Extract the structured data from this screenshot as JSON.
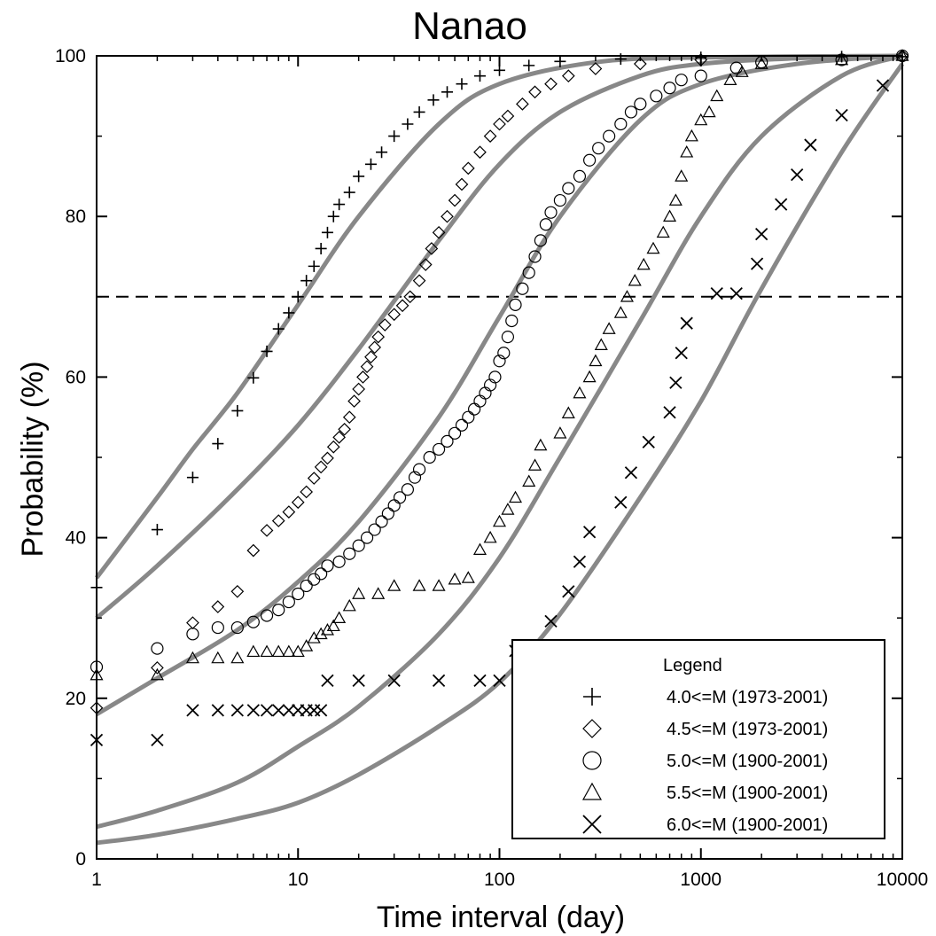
{
  "chart_data": {
    "type": "scatter",
    "title": "Nanao",
    "xlabel": "Time interval (day)",
    "ylabel": "Probability (%)",
    "xscale": "log",
    "xlim": [
      1,
      10000
    ],
    "ylim": [
      0,
      100
    ],
    "x_ticks": [
      "1",
      "10",
      "100",
      "1000",
      "10000"
    ],
    "y_ticks": [
      "0",
      "20",
      "40",
      "60",
      "80",
      "100"
    ],
    "reference_line": {
      "y": 70,
      "style": "dashed"
    },
    "legend": {
      "title": "Legend",
      "placement": "bottom-right"
    },
    "fit_color": "#888888",
    "marker_color": "#000000",
    "series": [
      {
        "name": "4.0<=M (1973-2001)",
        "marker": "plus",
        "points": [
          [
            1,
            33.8
          ],
          [
            2,
            41
          ],
          [
            3,
            47.5
          ],
          [
            4,
            51.7
          ],
          [
            5,
            55.8
          ],
          [
            6,
            59.9
          ],
          [
            7,
            63.2
          ],
          [
            8,
            66
          ],
          [
            9,
            68
          ],
          [
            10,
            70
          ],
          [
            11,
            72
          ],
          [
            12,
            73.8
          ],
          [
            13,
            76
          ],
          [
            14,
            78
          ],
          [
            15,
            80
          ],
          [
            16,
            81.5
          ],
          [
            18,
            83
          ],
          [
            20,
            85
          ],
          [
            23,
            86.5
          ],
          [
            26,
            88
          ],
          [
            30,
            90
          ],
          [
            35,
            91.5
          ],
          [
            40,
            93
          ],
          [
            47,
            94.5
          ],
          [
            55,
            95.5
          ],
          [
            65,
            96.5
          ],
          [
            80,
            97.5
          ],
          [
            100,
            98.2
          ],
          [
            140,
            98.8
          ],
          [
            200,
            99.3
          ],
          [
            400,
            99.6
          ],
          [
            1000,
            99.8
          ],
          [
            5000,
            99.9
          ],
          [
            10000,
            99.9
          ]
        ],
        "fit": [
          [
            1,
            35
          ],
          [
            2,
            45
          ],
          [
            3,
            51
          ],
          [
            5,
            58
          ],
          [
            10,
            69
          ],
          [
            20,
            80
          ],
          [
            50,
            91.5
          ],
          [
            100,
            96.5
          ],
          [
            300,
            99.2
          ],
          [
            1000,
            99.8
          ],
          [
            10000,
            100
          ]
        ]
      },
      {
        "name": "4.5<=M (1973-2001)",
        "marker": "diamond",
        "points": [
          [
            1,
            18.8
          ],
          [
            2,
            23.8
          ],
          [
            3,
            29.4
          ],
          [
            4,
            31.4
          ],
          [
            5,
            33.3
          ],
          [
            6,
            38.4
          ],
          [
            7,
            40.9
          ],
          [
            8,
            42.1
          ],
          [
            9,
            43.2
          ],
          [
            10,
            44.4
          ],
          [
            11,
            45.7
          ],
          [
            12,
            47.4
          ],
          [
            13,
            48.8
          ],
          [
            14,
            49.9
          ],
          [
            15,
            51.3
          ],
          [
            16,
            52.5
          ],
          [
            17,
            53.5
          ],
          [
            18,
            55
          ],
          [
            19,
            57
          ],
          [
            20,
            58.5
          ],
          [
            21,
            60
          ],
          [
            22,
            61.3
          ],
          [
            23,
            62.5
          ],
          [
            24,
            63.7
          ],
          [
            25,
            65
          ],
          [
            27,
            66.5
          ],
          [
            30,
            67.8
          ],
          [
            33,
            68.9
          ],
          [
            36,
            70
          ],
          [
            40,
            72
          ],
          [
            43,
            74
          ],
          [
            46,
            76
          ],
          [
            50,
            78
          ],
          [
            55,
            80
          ],
          [
            60,
            82
          ],
          [
            65,
            84
          ],
          [
            70,
            86
          ],
          [
            80,
            88
          ],
          [
            90,
            90
          ],
          [
            100,
            91.5
          ],
          [
            110,
            92.5
          ],
          [
            130,
            94
          ],
          [
            150,
            95.5
          ],
          [
            180,
            96.5
          ],
          [
            220,
            97.5
          ],
          [
            300,
            98.4
          ],
          [
            500,
            99
          ],
          [
            1000,
            99.5
          ],
          [
            10000,
            100
          ]
        ],
        "fit": [
          [
            1,
            30
          ],
          [
            2,
            36.5
          ],
          [
            5,
            46
          ],
          [
            10,
            54
          ],
          [
            20,
            63.5
          ],
          [
            50,
            77
          ],
          [
            100,
            86.5
          ],
          [
            200,
            93
          ],
          [
            500,
            97.5
          ],
          [
            1000,
            99
          ],
          [
            3000,
            99.7
          ],
          [
            10000,
            100
          ]
        ]
      },
      {
        "name": "5.0<=M (1900-2001)",
        "marker": "circle",
        "points": [
          [
            1,
            23.9
          ],
          [
            2,
            26.2
          ],
          [
            3,
            28
          ],
          [
            4,
            28.8
          ],
          [
            5,
            28.8
          ],
          [
            6,
            29.5
          ],
          [
            7,
            30.3
          ],
          [
            8,
            31
          ],
          [
            9,
            32
          ],
          [
            10,
            33
          ],
          [
            11,
            34
          ],
          [
            12,
            34.8
          ],
          [
            13,
            35.5
          ],
          [
            14,
            36.5
          ],
          [
            16,
            37
          ],
          [
            18,
            38
          ],
          [
            20,
            39
          ],
          [
            22,
            40
          ],
          [
            24,
            41
          ],
          [
            26,
            42
          ],
          [
            28,
            43
          ],
          [
            30,
            44
          ],
          [
            32,
            45
          ],
          [
            35,
            46
          ],
          [
            38,
            47.5
          ],
          [
            40,
            48.5
          ],
          [
            45,
            50
          ],
          [
            50,
            51
          ],
          [
            55,
            52
          ],
          [
            60,
            53
          ],
          [
            65,
            54
          ],
          [
            70,
            55
          ],
          [
            75,
            56
          ],
          [
            80,
            57
          ],
          [
            85,
            58
          ],
          [
            90,
            59
          ],
          [
            95,
            60
          ],
          [
            100,
            62
          ],
          [
            105,
            63
          ],
          [
            110,
            65
          ],
          [
            115,
            67
          ],
          [
            120,
            69
          ],
          [
            130,
            71
          ],
          [
            140,
            73
          ],
          [
            150,
            75
          ],
          [
            160,
            77
          ],
          [
            170,
            79
          ],
          [
            180,
            80.5
          ],
          [
            200,
            82
          ],
          [
            220,
            83.5
          ],
          [
            250,
            85
          ],
          [
            280,
            87
          ],
          [
            310,
            88.5
          ],
          [
            350,
            90
          ],
          [
            400,
            91.5
          ],
          [
            450,
            93
          ],
          [
            500,
            94
          ],
          [
            600,
            95
          ],
          [
            700,
            96
          ],
          [
            800,
            97
          ],
          [
            1000,
            97.5
          ],
          [
            1500,
            98.5
          ],
          [
            2000,
            99.2
          ],
          [
            5000,
            99.5
          ],
          [
            10000,
            100
          ]
        ],
        "fit": [
          [
            1,
            18
          ],
          [
            2,
            22.5
          ],
          [
            5,
            28.5
          ],
          [
            10,
            34.5
          ],
          [
            20,
            42
          ],
          [
            50,
            55
          ],
          [
            100,
            67.5
          ],
          [
            200,
            80
          ],
          [
            500,
            92
          ],
          [
            1000,
            96.5
          ],
          [
            3000,
            99
          ],
          [
            10000,
            100
          ]
        ]
      },
      {
        "name": "5.5<=M (1900-2001)",
        "marker": "triangle",
        "points": [
          [
            1,
            22.9
          ],
          [
            2,
            22.9
          ],
          [
            3,
            25
          ],
          [
            4,
            25
          ],
          [
            5,
            25
          ],
          [
            6,
            25.8
          ],
          [
            7,
            25.8
          ],
          [
            8,
            25.8
          ],
          [
            9,
            25.8
          ],
          [
            10,
            25.8
          ],
          [
            11,
            26.5
          ],
          [
            12,
            27.5
          ],
          [
            13,
            28
          ],
          [
            14,
            28.5
          ],
          [
            15,
            29
          ],
          [
            16,
            30
          ],
          [
            18,
            31.5
          ],
          [
            20,
            33
          ],
          [
            25,
            33
          ],
          [
            30,
            34
          ],
          [
            40,
            34
          ],
          [
            50,
            34
          ],
          [
            60,
            34.8
          ],
          [
            70,
            35
          ],
          [
            80,
            38.5
          ],
          [
            90,
            40
          ],
          [
            100,
            42
          ],
          [
            110,
            43.5
          ],
          [
            120,
            45
          ],
          [
            140,
            47
          ],
          [
            150,
            49
          ],
          [
            160,
            51.5
          ],
          [
            200,
            53
          ],
          [
            220,
            55.5
          ],
          [
            250,
            58
          ],
          [
            280,
            60
          ],
          [
            300,
            62
          ],
          [
            320,
            64
          ],
          [
            350,
            66
          ],
          [
            400,
            68
          ],
          [
            430,
            70
          ],
          [
            470,
            72
          ],
          [
            520,
            74
          ],
          [
            580,
            76
          ],
          [
            650,
            78
          ],
          [
            700,
            80
          ],
          [
            750,
            82
          ],
          [
            800,
            85
          ],
          [
            850,
            88
          ],
          [
            900,
            90
          ],
          [
            1000,
            92
          ],
          [
            1100,
            93
          ],
          [
            1200,
            95
          ],
          [
            1400,
            97
          ],
          [
            1600,
            98
          ],
          [
            2000,
            99
          ],
          [
            5000,
            99.5
          ],
          [
            10000,
            100
          ]
        ],
        "fit": [
          [
            1,
            4
          ],
          [
            2,
            6
          ],
          [
            5,
            9.5
          ],
          [
            10,
            14
          ],
          [
            20,
            19
          ],
          [
            50,
            28
          ],
          [
            100,
            37.5
          ],
          [
            200,
            50
          ],
          [
            500,
            67
          ],
          [
            1000,
            80
          ],
          [
            2000,
            90
          ],
          [
            5000,
            97.5
          ],
          [
            10000,
            100
          ]
        ]
      },
      {
        "name": "6.0<=M (1900-2001)",
        "marker": "x",
        "points": [
          [
            1,
            14.8
          ],
          [
            2,
            14.8
          ],
          [
            3,
            18.5
          ],
          [
            4,
            18.5
          ],
          [
            5,
            18.5
          ],
          [
            6,
            18.5
          ],
          [
            7,
            18.5
          ],
          [
            8,
            18.5
          ],
          [
            9,
            18.5
          ],
          [
            10,
            18.5
          ],
          [
            11,
            18.5
          ],
          [
            12,
            18.5
          ],
          [
            13,
            18.5
          ],
          [
            14,
            22.2
          ],
          [
            20,
            22.2
          ],
          [
            30,
            22.2
          ],
          [
            50,
            22.2
          ],
          [
            80,
            22.2
          ],
          [
            100,
            22.2
          ],
          [
            120,
            25.9
          ],
          [
            180,
            29.6
          ],
          [
            220,
            33.3
          ],
          [
            250,
            37
          ],
          [
            280,
            40.7
          ],
          [
            400,
            44.4
          ],
          [
            450,
            48.1
          ],
          [
            550,
            51.9
          ],
          [
            700,
            55.6
          ],
          [
            750,
            59.3
          ],
          [
            800,
            63
          ],
          [
            850,
            66.7
          ],
          [
            1200,
            70.4
          ],
          [
            1500,
            70.4
          ],
          [
            1900,
            74.1
          ],
          [
            2000,
            77.8
          ],
          [
            2500,
            81.5
          ],
          [
            3000,
            85.2
          ],
          [
            3500,
            88.9
          ],
          [
            5000,
            92.6
          ],
          [
            8000,
            96.3
          ]
        ],
        "fit": [
          [
            1,
            2
          ],
          [
            2,
            3
          ],
          [
            5,
            5
          ],
          [
            10,
            7
          ],
          [
            20,
            10.5
          ],
          [
            50,
            16.5
          ],
          [
            100,
            22
          ],
          [
            200,
            30.5
          ],
          [
            500,
            45
          ],
          [
            1000,
            57
          ],
          [
            2000,
            71
          ],
          [
            5000,
            88
          ],
          [
            10000,
            99
          ]
        ]
      }
    ]
  }
}
